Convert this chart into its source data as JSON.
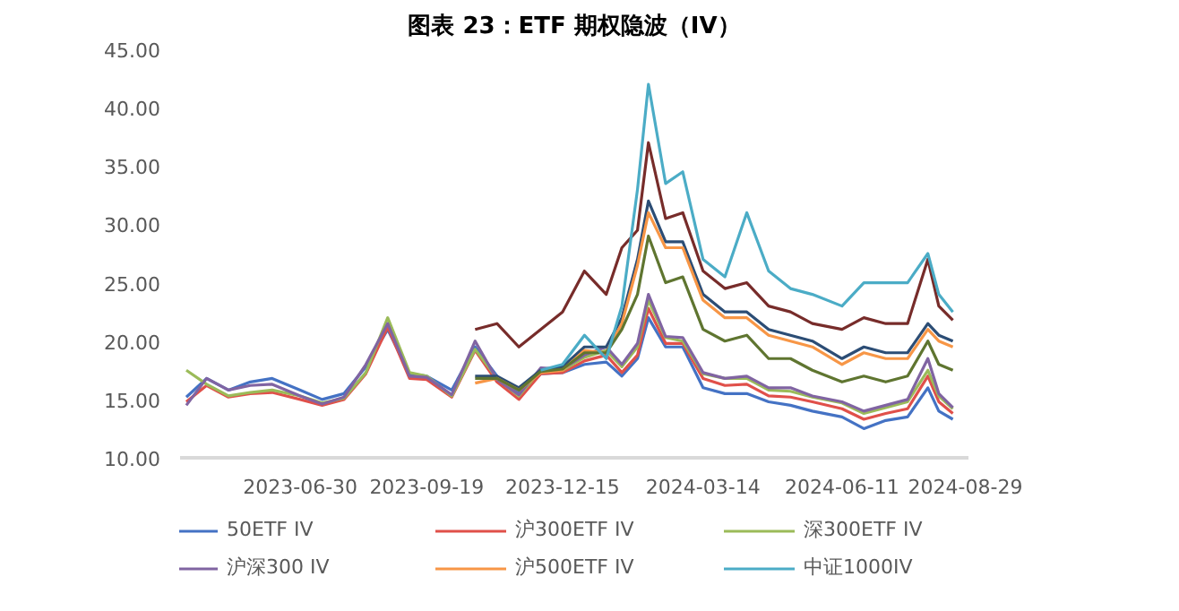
{
  "chart_data": {
    "type": "line",
    "title": "图表 23：ETF 期权隐波（IV）",
    "x": [
      "2023-04-18",
      "2023-05-01",
      "2023-05-15",
      "2023-05-29",
      "2023-06-12",
      "2023-06-30",
      "2023-07-14",
      "2023-07-28",
      "2023-08-11",
      "2023-08-25",
      "2023-09-08",
      "2023-09-19",
      "2023-10-05",
      "2023-10-20",
      "2023-11-03",
      "2023-11-17",
      "2023-12-01",
      "2023-12-15",
      "2023-12-29",
      "2024-01-12",
      "2024-01-22",
      "2024-02-01",
      "2024-02-08",
      "2024-02-19",
      "2024-03-01",
      "2024-03-14",
      "2024-03-28",
      "2024-04-11",
      "2024-04-25",
      "2024-05-09",
      "2024-05-23",
      "2024-06-11",
      "2024-06-25",
      "2024-07-09",
      "2024-07-23",
      "2024-08-05",
      "2024-08-12",
      "2024-08-21"
    ],
    "series": [
      {
        "name": "50ETF IV",
        "color": "#4472c4",
        "values": [
          15.2,
          16.8,
          15.8,
          16.5,
          16.8,
          15.8,
          15.0,
          15.5,
          17.8,
          21.0,
          17.2,
          17.0,
          15.8,
          19.5,
          17.0,
          15.5,
          17.2,
          17.3,
          18.0,
          18.2,
          17.0,
          18.5,
          22.0,
          19.5,
          19.5,
          16.0,
          15.5,
          15.5,
          14.8,
          14.5,
          14.0,
          13.5,
          12.5,
          13.2,
          13.5,
          16.0,
          14.0,
          13.3
        ]
      },
      {
        "name": "沪300ETF IV",
        "color": "#e0504a",
        "values": [
          14.8,
          16.2,
          15.2,
          15.5,
          15.6,
          15.0,
          14.5,
          15.0,
          17.2,
          21.2,
          16.8,
          16.7,
          15.2,
          19.2,
          16.5,
          15.0,
          17.2,
          17.3,
          18.3,
          18.8,
          17.3,
          18.8,
          22.8,
          19.8,
          19.8,
          16.8,
          16.2,
          16.3,
          15.3,
          15.2,
          14.8,
          14.2,
          13.3,
          13.8,
          14.2,
          17.0,
          14.8,
          13.8
        ]
      },
      {
        "name": "深300ETF IV",
        "color": "#9bbb59",
        "values": [
          17.5,
          16.3,
          15.3,
          15.6,
          15.8,
          15.3,
          14.7,
          15.1,
          17.3,
          22.0,
          17.3,
          17.0,
          15.3,
          19.3,
          16.8,
          15.3,
          17.5,
          17.5,
          18.6,
          19.2,
          17.8,
          19.5,
          23.5,
          20.3,
          20.0,
          17.2,
          16.8,
          16.8,
          15.8,
          15.7,
          15.2,
          14.7,
          13.8,
          14.3,
          14.8,
          17.5,
          15.3,
          14.2
        ]
      },
      {
        "name": "沪深300 IV",
        "color": "#8064a2",
        "values": [
          14.5,
          16.8,
          15.8,
          16.2,
          16.3,
          15.3,
          14.6,
          15.2,
          18.0,
          21.5,
          17.0,
          16.9,
          15.4,
          20.0,
          16.7,
          15.4,
          17.7,
          17.6,
          18.8,
          19.5,
          18.0,
          19.8,
          24.0,
          20.4,
          20.3,
          17.3,
          16.8,
          17.0,
          16.0,
          16.0,
          15.3,
          14.8,
          14.0,
          14.5,
          15.0,
          18.5,
          15.5,
          14.3
        ]
      },
      {
        "color": "#2c4d75",
        "values": [
          null,
          null,
          null,
          null,
          null,
          null,
          null,
          null,
          null,
          null,
          null,
          null,
          null,
          17.0,
          17.0,
          16.0,
          17.5,
          17.8,
          19.5,
          19.5,
          22.0,
          27.0,
          32.0,
          28.5,
          28.5,
          24.0,
          22.5,
          22.5,
          21.0,
          20.5,
          20.0,
          18.5,
          19.5,
          19.0,
          19.0,
          21.5,
          20.5,
          20.0
        ]
      },
      {
        "name": "沪500ETF IV",
        "color": "#f79646",
        "values": [
          null,
          null,
          null,
          null,
          null,
          null,
          null,
          null,
          null,
          null,
          null,
          null,
          null,
          16.4,
          16.8,
          15.8,
          17.3,
          17.5,
          19.2,
          19.0,
          21.5,
          26.5,
          31.0,
          28.0,
          28.0,
          23.5,
          22.0,
          22.0,
          20.5,
          20.0,
          19.5,
          18.0,
          19.0,
          18.5,
          18.5,
          21.0,
          20.0,
          19.5
        ]
      },
      {
        "color": "#5f7530",
        "values": [
          null,
          null,
          null,
          null,
          null,
          null,
          null,
          null,
          null,
          null,
          null,
          null,
          null,
          16.8,
          16.8,
          15.8,
          17.4,
          17.6,
          19.0,
          19.0,
          21.0,
          24.0,
          29.0,
          25.0,
          25.5,
          21.0,
          20.0,
          20.5,
          18.5,
          18.5,
          17.5,
          16.5,
          17.0,
          16.5,
          17.0,
          20.0,
          18.0,
          17.5
        ]
      },
      {
        "color": "#772c2a",
        "values": [
          null,
          null,
          null,
          null,
          null,
          null,
          null,
          null,
          null,
          null,
          null,
          null,
          null,
          21.0,
          21.5,
          19.5,
          21.0,
          22.5,
          26.0,
          24.0,
          28.0,
          29.5,
          37.0,
          30.5,
          31.0,
          26.0,
          24.5,
          25.0,
          23.0,
          22.5,
          21.5,
          21.0,
          22.0,
          21.5,
          21.5,
          27.0,
          23.0,
          21.8
        ]
      },
      {
        "name": "中证1000IV",
        "color": "#4bacc6",
        "values": [
          null,
          null,
          null,
          null,
          null,
          null,
          null,
          null,
          null,
          null,
          null,
          null,
          null,
          null,
          null,
          null,
          17.5,
          18.0,
          20.5,
          18.5,
          23.0,
          33.0,
          42.0,
          33.5,
          34.5,
          27.0,
          25.5,
          31.0,
          26.0,
          24.5,
          24.0,
          23.0,
          25.0,
          25.0,
          25.0,
          27.5,
          24.0,
          22.5
        ]
      }
    ],
    "xlim": [
      "2023-04-14",
      "2024-08-31"
    ],
    "xticks": [
      {
        "value": "2023-06-30",
        "label": "2023-06-30"
      },
      {
        "value": "2023-09-19",
        "label": "2023-09-19"
      },
      {
        "value": "2023-12-15",
        "label": "2023-12-15"
      },
      {
        "value": "2024-03-14",
        "label": "2024-03-14"
      },
      {
        "value": "2024-06-11",
        "label": "2024-06-11"
      },
      {
        "value": "2024-08-29",
        "label": "2024-08-29"
      }
    ],
    "ylim": [
      10,
      45
    ],
    "yticks": [
      {
        "value": 10,
        "label": "10.00"
      },
      {
        "value": 15,
        "label": "15.00"
      },
      {
        "value": 20,
        "label": "20.00"
      },
      {
        "value": 25,
        "label": "25.00"
      },
      {
        "value": 30,
        "label": "30.00"
      },
      {
        "value": 35,
        "label": "35.00"
      },
      {
        "value": 40,
        "label": "40.00"
      },
      {
        "value": 45,
        "label": "45.00"
      }
    ],
    "grid": false,
    "legend": "bottom",
    "marker": "none",
    "line_style": "solid"
  }
}
